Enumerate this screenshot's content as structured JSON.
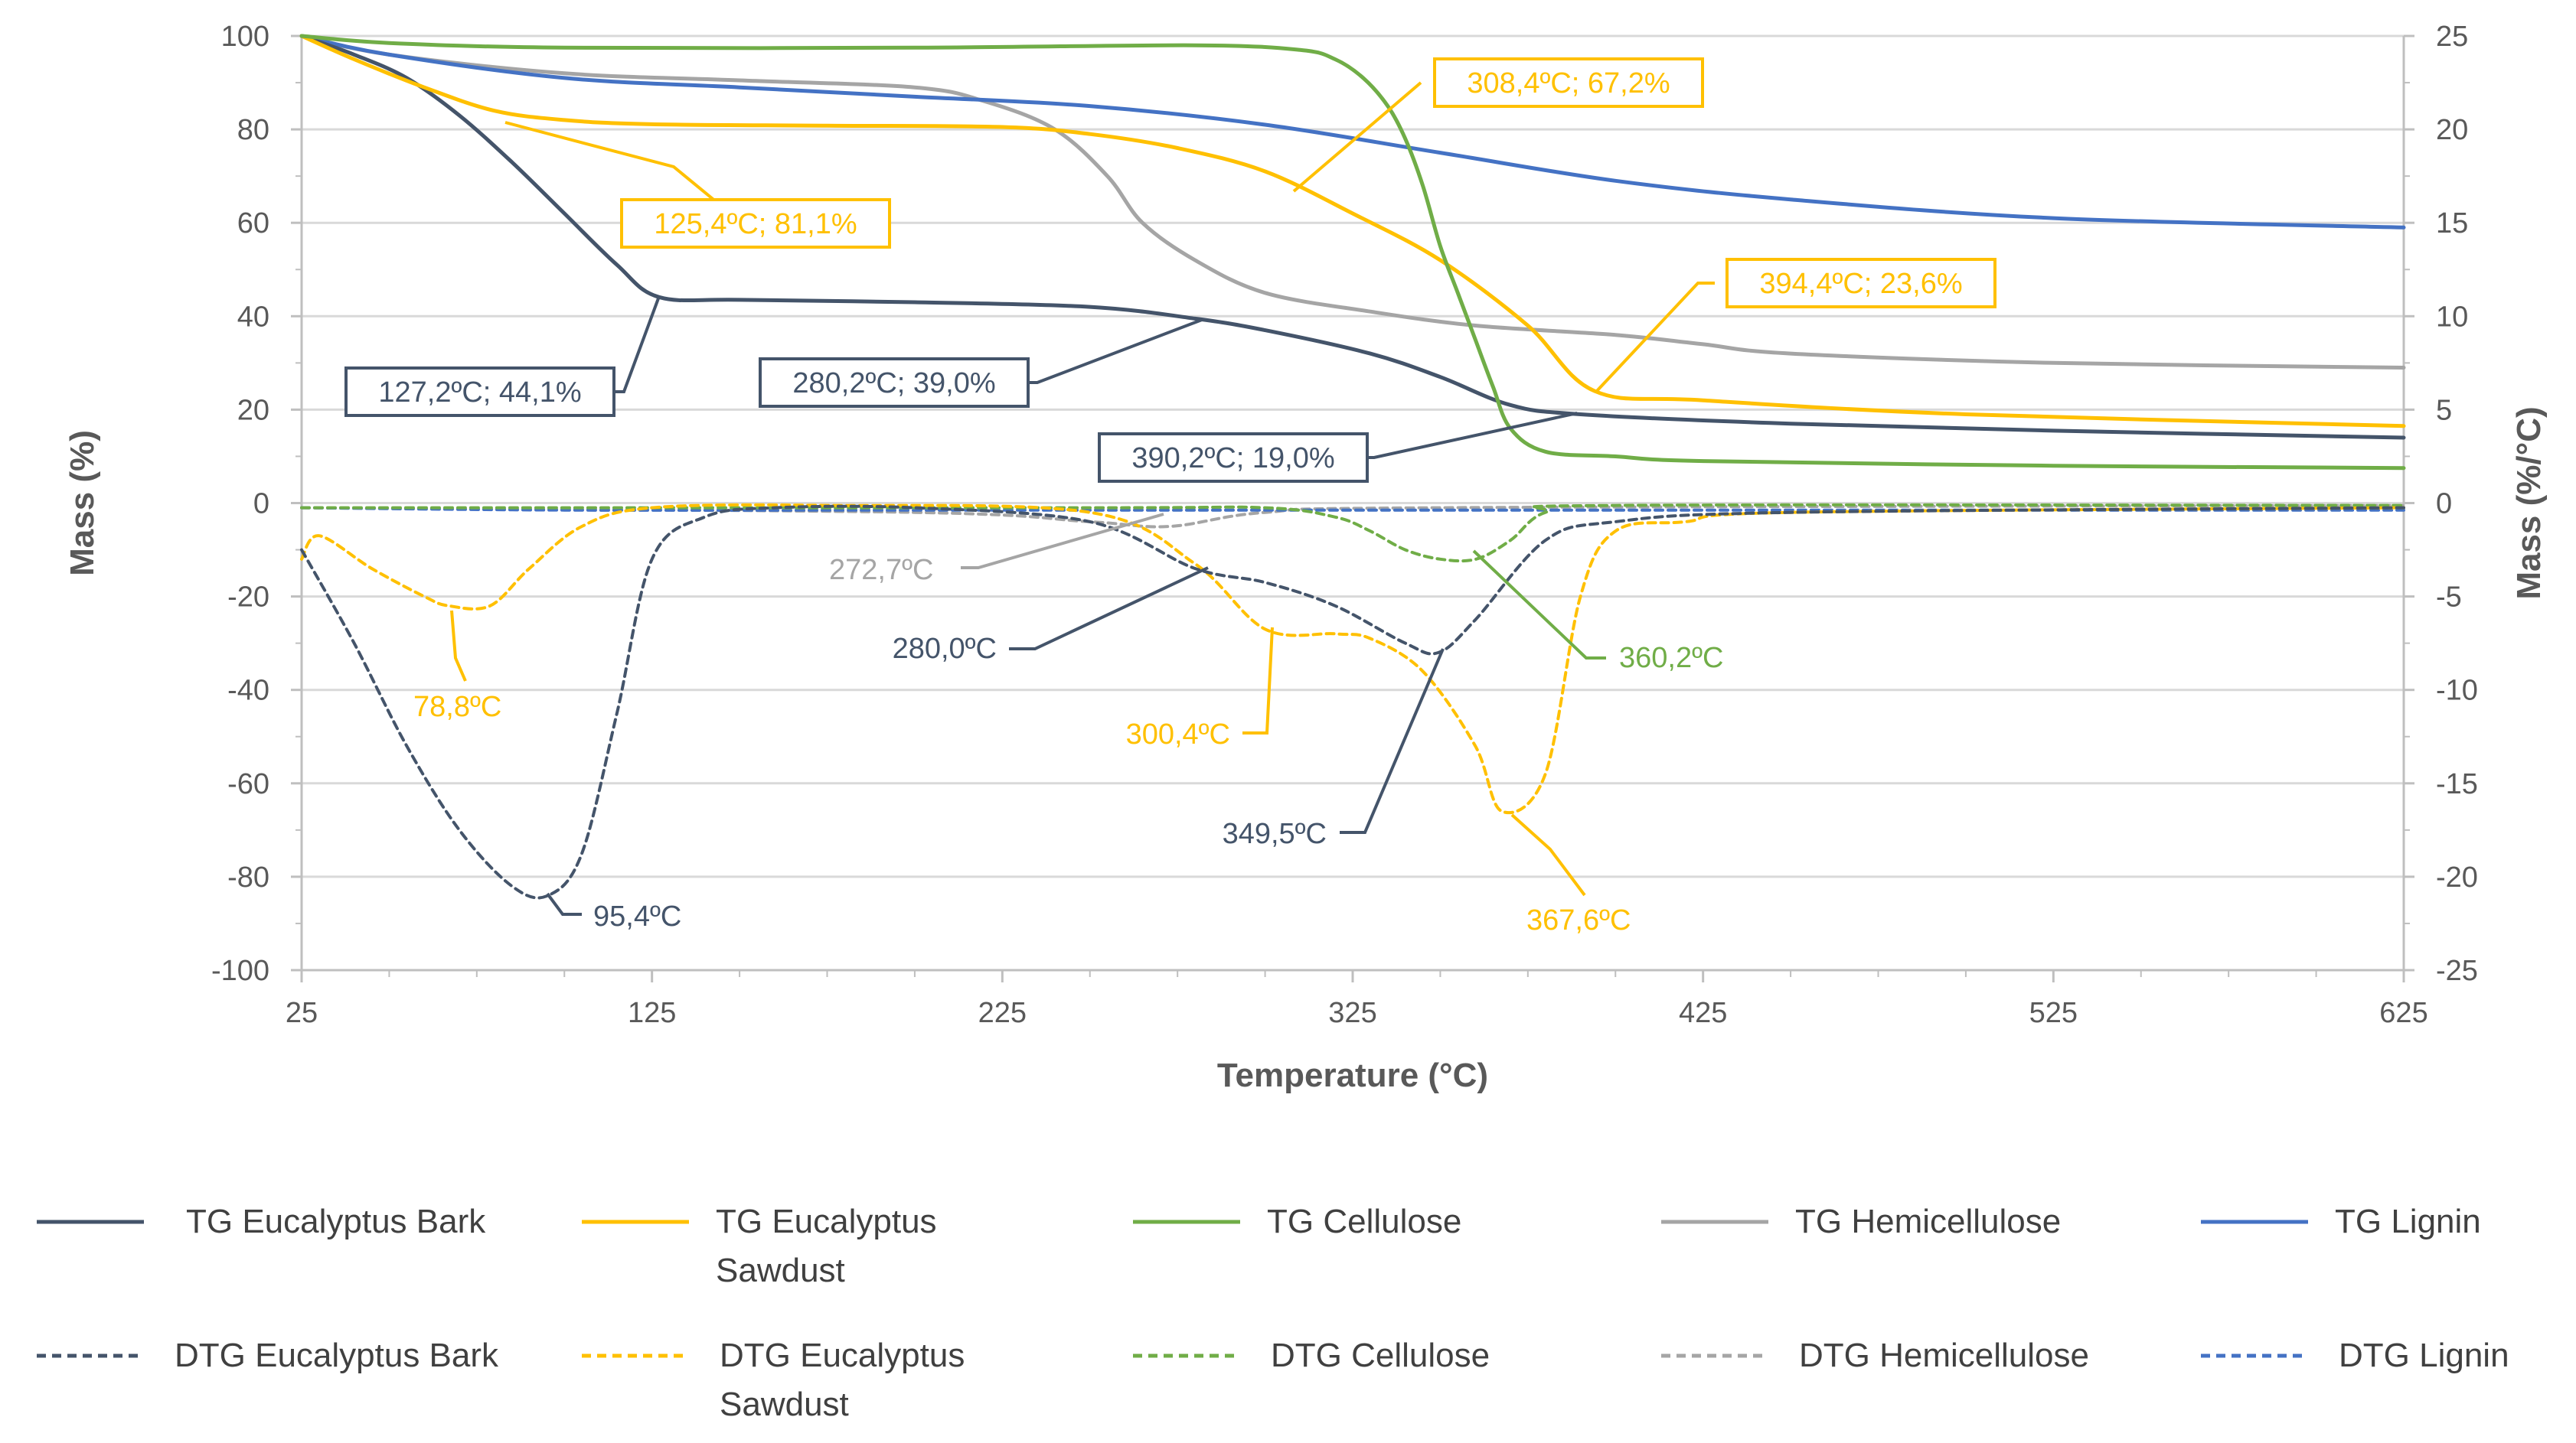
{
  "chart_data": {
    "type": "line",
    "xlabel": "Temperature (°C)",
    "ylabel_left": "Mass (%)",
    "ylabel_right": "Mass (%/°C)",
    "xlim": [
      25,
      625
    ],
    "ylim_left": [
      -100,
      100
    ],
    "ylim_right": [
      -25,
      25
    ],
    "x_ticks": [
      "25",
      "125",
      "225",
      "325",
      "425",
      "525",
      "625"
    ],
    "y_ticks_left": [
      "100",
      "80",
      "60",
      "40",
      "20",
      "0",
      "-20",
      "-40",
      "-60",
      "-80",
      "-100"
    ],
    "y_ticks_right": [
      "25",
      "20",
      "15",
      "10",
      "5",
      "0",
      "-5",
      "-10",
      "-15",
      "-20",
      "-25"
    ],
    "colors": {
      "bark": "#44546a",
      "sawdust": "#ffc000",
      "cellulose": "#70ad47",
      "hemicellulose": "#a5a5a5",
      "lignin": "#4472c4",
      "grid": "#d9d9d9",
      "axis": "#bfbfbf"
    },
    "series": [
      {
        "key": "tg_bark",
        "name": "TG Eucalyptus Bark",
        "color": "bark",
        "dash": false,
        "x": [
          25,
          40,
          55,
          70,
          85,
          100,
          115,
          127,
          150,
          200,
          250,
          280,
          300,
          330,
          350,
          370,
          390,
          450,
          525,
          625
        ],
        "y": [
          100,
          96,
          91,
          83,
          73,
          62,
          51,
          44.1,
          43.5,
          43,
          42,
          39.5,
          37,
          32,
          27,
          21,
          19,
          17,
          15.5,
          14
        ]
      },
      {
        "key": "tg_sawdust",
        "name": "TG Eucalyptus Sawdust",
        "color": "sawdust",
        "dash": false,
        "x": [
          25,
          40,
          60,
          80,
          100,
          125,
          175,
          225,
          250,
          275,
          300,
          325,
          350,
          375,
          394,
          425,
          500,
          625
        ],
        "y": [
          100,
          95,
          89,
          84,
          82,
          81.1,
          80.8,
          80.5,
          79,
          76,
          71,
          62,
          52,
          38,
          24,
          22,
          19,
          16.5
        ]
      },
      {
        "key": "tg_cellulose",
        "name": "TG Cellulose",
        "color": "cellulose",
        "dash": false,
        "x": [
          25,
          50,
          100,
          200,
          280,
          310,
          320,
          328,
          335,
          340,
          345,
          350,
          355,
          360,
          365,
          370,
          380,
          400,
          425,
          525,
          625
        ],
        "y": [
          100,
          98.5,
          97.5,
          97.5,
          98,
          97,
          95,
          91,
          85,
          78,
          68,
          55,
          45,
          35,
          25,
          16,
          11,
          10,
          9,
          8,
          7.5
        ]
      },
      {
        "key": "tg_hemicellulose",
        "name": "TG Hemicellulose",
        "color": "hemicellulose",
        "dash": false,
        "x": [
          25,
          50,
          100,
          150,
          200,
          220,
          240,
          255,
          265,
          280,
          300,
          330,
          360,
          400,
          425,
          450,
          525,
          625
        ],
        "y": [
          100,
          96,
          92,
          90.5,
          89,
          86,
          80,
          70,
          60,
          52,
          45,
          41,
          38,
          36,
          34,
          32,
          30,
          29
        ]
      },
      {
        "key": "tg_lignin",
        "name": "TG Lignin",
        "color": "lignin",
        "dash": false,
        "x": [
          25,
          50,
          100,
          150,
          200,
          250,
          300,
          350,
          400,
          450,
          525,
          625
        ],
        "y": [
          100,
          96,
          91,
          89,
          87,
          85,
          81,
          75,
          69,
          65,
          61,
          59
        ]
      },
      {
        "key": "dtg_bark",
        "name": "DTG Eucalyptus Bark",
        "color": "bark",
        "dash": true,
        "x": [
          25,
          40,
          55,
          70,
          85,
          95.4,
          105,
          115,
          125,
          140,
          160,
          200,
          250,
          280,
          300,
          320,
          340,
          349.5,
          360,
          380,
          400,
          450,
          625
        ],
        "y": [
          -10,
          -30,
          -52,
          -70,
          -82,
          -84,
          -75,
          -45,
          -12,
          -3,
          -1,
          -1,
          -4,
          -14,
          -17,
          -22,
          -30,
          -32,
          -25,
          -8,
          -4,
          -2,
          -1
        ]
      },
      {
        "key": "dtg_sawdust",
        "name": "DTG Eucalyptus Sawdust",
        "color": "sawdust",
        "dash": true,
        "x": [
          25,
          30,
          45,
          60,
          67,
          78.8,
          90,
          105,
          125,
          175,
          250,
          280,
          300,
          320,
          330,
          345,
          360,
          367.6,
          380,
          390,
          400,
          420,
          450,
          625
        ],
        "y": [
          -12,
          -7,
          -14,
          -20,
          -22,
          -22,
          -14,
          -5,
          -1,
          -0.5,
          -2,
          -13,
          -27,
          -28,
          -29,
          -36,
          -52,
          -66,
          -58,
          -20,
          -6,
          -4,
          -2,
          -1
        ]
      },
      {
        "key": "dtg_cellulose",
        "name": "DTG Cellulose",
        "color": "cellulose",
        "dash": true,
        "x": [
          25,
          250,
          300,
          320,
          330,
          340,
          350,
          360.2,
          370,
          380,
          400,
          625
        ],
        "y": [
          -1,
          -1,
          -1,
          -3,
          -6,
          -10,
          -12,
          -12,
          -8,
          -2,
          -0.5,
          -0.5
        ]
      },
      {
        "key": "dtg_hemicellulose",
        "name": "DTG Hemicellulose",
        "color": "hemicellulose",
        "dash": true,
        "x": [
          25,
          200,
          250,
          272.7,
          300,
          350,
          625
        ],
        "y": [
          -1,
          -2,
          -4,
          -5,
          -2,
          -1,
          -0.5
        ]
      },
      {
        "key": "dtg_lignin",
        "name": "DTG Lignin",
        "color": "lignin",
        "dash": true,
        "x": [
          25,
          100,
          200,
          300,
          400,
          500,
          625
        ],
        "y": [
          -1,
          -1.5,
          -1.5,
          -1.5,
          -1.5,
          -1.5,
          -1.5
        ]
      }
    ],
    "annotations": [
      {
        "text": "125,4ºC; 81,1%",
        "color": "sawdust",
        "boxed": true
      },
      {
        "text": "308,4ºC; 67,2%",
        "color": "sawdust",
        "boxed": true
      },
      {
        "text": "394,4ºC; 23,6%",
        "color": "sawdust",
        "boxed": true
      },
      {
        "text": "127,2ºC; 44,1%",
        "color": "bark",
        "boxed": true
      },
      {
        "text": "280,2ºC; 39,0%",
        "color": "bark",
        "boxed": true
      },
      {
        "text": "390,2ºC; 19,0%",
        "color": "bark",
        "boxed": true
      },
      {
        "text": "272,7ºC",
        "color": "hemicellulose",
        "boxed": false
      },
      {
        "text": "280,0ºC",
        "color": "bark",
        "boxed": false
      },
      {
        "text": "360,2ºC",
        "color": "cellulose",
        "boxed": false
      },
      {
        "text": "78,8ºC",
        "color": "sawdust",
        "boxed": false
      },
      {
        "text": "300,4ºC",
        "color": "sawdust",
        "boxed": false
      },
      {
        "text": "349,5ºC",
        "color": "bark",
        "boxed": false
      },
      {
        "text": "367,6ºC",
        "color": "sawdust",
        "boxed": false
      },
      {
        "text": "95,4ºC",
        "color": "bark",
        "boxed": false
      }
    ],
    "legend": [
      {
        "lines": [
          "TG Eucalyptus Bark"
        ],
        "series": "tg_bark"
      },
      {
        "lines": [
          "TG Eucalyptus",
          "Sawdust"
        ],
        "series": "tg_sawdust"
      },
      {
        "lines": [
          "TG Cellulose"
        ],
        "series": "tg_cellulose"
      },
      {
        "lines": [
          "TG Hemicellulose"
        ],
        "series": "tg_hemicellulose"
      },
      {
        "lines": [
          "TG Lignin"
        ],
        "series": "tg_lignin"
      },
      {
        "lines": [
          "DTG Eucalyptus Bark"
        ],
        "series": "dtg_bark"
      },
      {
        "lines": [
          "DTG Eucalyptus",
          "Sawdust"
        ],
        "series": "dtg_sawdust"
      },
      {
        "lines": [
          "DTG Cellulose"
        ],
        "series": "dtg_cellulose"
      },
      {
        "lines": [
          "DTG Hemicellulose"
        ],
        "series": "dtg_hemicellulose"
      },
      {
        "lines": [
          "DTG Lignin"
        ],
        "series": "dtg_lignin"
      }
    ]
  }
}
